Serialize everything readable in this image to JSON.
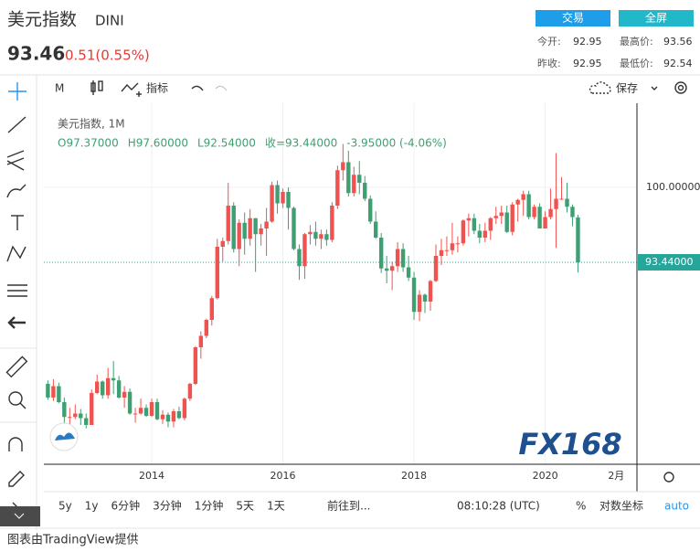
{
  "header": {
    "title": "美元指数",
    "symbol": "DINI",
    "price": "93.46",
    "change": "0.51(0.55%)",
    "buttons": [
      "交易",
      "全屏"
    ],
    "stats": [
      [
        "今开:",
        "92.95"
      ],
      [
        "最高价:",
        "93.56"
      ],
      [
        "昨收:",
        "92.95"
      ],
      [
        "最低价:",
        "92.54"
      ]
    ]
  },
  "toolbar": {
    "interval": "M",
    "indicators": "指标",
    "save": "保存"
  },
  "chart_data": {
    "type": "candlestick",
    "title": "美元指数, 1M",
    "ohlc_legend": [
      "O97.37000",
      "H97.60000",
      "L92.54000",
      "收=93.44000",
      "-3.95000 (-4.06%)"
    ],
    "categories": [
      null,
      null,
      null,
      null,
      null,
      null,
      null,
      null,
      null,
      null,
      null,
      null,
      null,
      null,
      null,
      null,
      null,
      null,
      null,
      "2014",
      null,
      null,
      null,
      null,
      null,
      null,
      null,
      null,
      null,
      null,
      null,
      null,
      null,
      null,
      null,
      null,
      null,
      null,
      null,
      null,
      null,
      null,
      null,
      "2016",
      null,
      null,
      null,
      null,
      null,
      null,
      null,
      null,
      null,
      null,
      null,
      null,
      null,
      null,
      null,
      null,
      null,
      null,
      null,
      null,
      null,
      null,
      null,
      "2018",
      null,
      null,
      null,
      null,
      null,
      null,
      null,
      null,
      null,
      null,
      null,
      null,
      null,
      null,
      null,
      null,
      null,
      null,
      null,
      null,
      null,
      null,
      null,
      "2020",
      null,
      null,
      null,
      null,
      null,
      null
    ],
    "future_tick": "2月",
    "open": [
      82.8,
      81.6,
      82.6,
      81.2,
      79.9,
      79.9,
      80.2,
      79.8,
      79.2,
      82.0,
      83.0,
      81.8,
      83.3,
      83.1,
      81.6,
      82.1,
      80.2,
      80.2,
      80.7,
      80.0,
      81.2,
      79.7,
      80.1,
      79.5,
      80.4,
      79.8,
      81.5,
      82.8,
      86.0,
      87.0,
      88.4,
      90.3,
      94.8,
      95.3,
      98.4,
      94.6,
      96.9,
      95.5,
      97.3,
      95.9,
      96.4,
      97.0,
      100.2,
      98.6,
      99.6,
      98.2,
      94.6,
      93.1,
      95.9,
      96.1,
      95.5,
      95.9,
      95.4,
      98.4,
      101.5,
      102.2,
      99.5,
      101.1,
      100.4,
      99.0,
      97.0,
      95.6,
      92.9,
      92.7,
      93.1,
      94.6,
      93.0,
      92.1,
      89.1,
      90.6,
      90.0,
      91.8,
      94.0,
      94.5,
      94.5,
      95.1,
      95.1,
      97.1,
      97.3,
      96.2,
      95.6,
      96.2,
      97.3,
      97.5,
      97.8,
      96.1,
      98.5,
      98.9,
      99.4,
      97.4,
      98.3,
      96.4,
      97.4,
      98.1,
      99.0,
      99.0,
      98.3,
      97.37
    ],
    "high": [
      83.1,
      83.2,
      82.9,
      81.6,
      80.7,
      81.0,
      80.6,
      80.2,
      82.3,
      83.6,
      83.1,
      84.2,
      84.8,
      83.5,
      82.6,
      82.4,
      80.7,
      81.5,
      81.0,
      81.5,
      81.5,
      80.5,
      80.3,
      80.6,
      80.8,
      81.6,
      82.9,
      86.1,
      87.4,
      88.5,
      90.5,
      95.5,
      95.6,
      100.4,
      98.7,
      97.2,
      97.8,
      98.1,
      97.3,
      96.8,
      98.2,
      100.5,
      100.6,
      99.9,
      100.0,
      98.3,
      95.0,
      96.0,
      96.7,
      97.0,
      96.3,
      96.3,
      98.7,
      101.9,
      103.8,
      103.2,
      101.8,
      102.3,
      101.0,
      99.3,
      97.9,
      96.0,
      94.0,
      93.5,
      95.2,
      95.1,
      94.0,
      92.6,
      91.0,
      90.7,
      91.9,
      95.0,
      95.5,
      95.7,
      96.9,
      95.7,
      97.2,
      97.7,
      97.7,
      96.8,
      96.9,
      97.4,
      98.3,
      98.4,
      98.4,
      98.7,
      99.0,
      99.7,
      99.7,
      98.5,
      98.6,
      97.9,
      99.9,
      103.0,
      100.9,
      100.4,
      98.5,
      97.6
    ],
    "low": [
      81.4,
      81.3,
      81.1,
      79.3,
      79.0,
      79.7,
      79.2,
      78.9,
      79.2,
      81.9,
      81.5,
      81.5,
      81.9,
      81.5,
      80.7,
      80.1,
      79.4,
      80.1,
      79.9,
      79.9,
      79.6,
      79.3,
      79.0,
      79.0,
      79.7,
      79.6,
      81.3,
      82.7,
      85.0,
      86.8,
      87.9,
      90.2,
      93.5,
      95.0,
      94.3,
      93.1,
      94.1,
      94.9,
      92.6,
      94.9,
      94.0,
      96.9,
      97.7,
      98.2,
      96.3,
      94.5,
      91.9,
      92.0,
      95.0,
      94.9,
      94.6,
      94.9,
      95.2,
      98.1,
      100.6,
      99.2,
      99.2,
      99.4,
      98.8,
      96.8,
      95.5,
      92.5,
      91.6,
      91.0,
      92.6,
      92.6,
      91.8,
      88.4,
      88.3,
      89.0,
      89.2,
      91.7,
      93.2,
      94.0,
      94.1,
      94.3,
      94.9,
      95.7,
      95.9,
      95.1,
      95.2,
      95.4,
      96.8,
      96.8,
      96.0,
      95.8,
      97.0,
      97.5,
      97.2,
      97.2,
      96.4,
      96.4,
      97.2,
      94.7,
      98.9,
      97.8,
      96.6,
      92.54
    ],
    "close": [
      81.6,
      82.6,
      81.2,
      79.9,
      79.9,
      80.2,
      79.8,
      79.2,
      82.0,
      83.0,
      81.8,
      83.3,
      83.1,
      81.6,
      82.1,
      80.2,
      80.2,
      80.7,
      80.0,
      81.2,
      79.7,
      80.1,
      79.5,
      80.4,
      79.8,
      81.5,
      82.8,
      86.0,
      87.0,
      88.4,
      90.3,
      94.8,
      95.3,
      98.4,
      94.6,
      96.9,
      95.5,
      97.3,
      95.9,
      96.4,
      97.0,
      100.2,
      98.6,
      99.6,
      98.2,
      94.6,
      93.1,
      95.9,
      96.1,
      95.5,
      95.9,
      95.4,
      98.4,
      101.5,
      102.2,
      99.5,
      101.1,
      100.4,
      99.0,
      97.0,
      95.6,
      92.9,
      92.7,
      93.1,
      94.6,
      93.0,
      92.1,
      89.1,
      90.6,
      90.0,
      91.8,
      94.0,
      94.5,
      94.5,
      95.1,
      95.1,
      97.1,
      97.3,
      96.2,
      95.6,
      96.2,
      97.3,
      97.5,
      97.8,
      96.1,
      98.5,
      98.9,
      99.4,
      97.4,
      98.3,
      96.4,
      97.4,
      98.1,
      99.0,
      99.0,
      98.3,
      97.4,
      93.44
    ],
    "up_color": "#ef5350",
    "down_color": "#3f9f72",
    "ylim": [
      75.76,
      107.2
    ],
    "yticks": [
      {
        "value": 100,
        "label": "100.00000"
      }
    ],
    "price_line": {
      "value": 93.44,
      "label": "93.44000",
      "color": "#26a69a"
    },
    "grid": true
  },
  "bottom_bar": {
    "ranges": [
      "5y",
      "1y",
      "6分钟",
      "3分钟",
      "1分钟",
      "5天",
      "1天"
    ],
    "goto": "前往到...",
    "time": "08:10:28 (UTC)",
    "percent": "%",
    "log": "对数坐标",
    "auto": "auto"
  },
  "watermark": "FX168",
  "footer": "图表由TradingView提供"
}
